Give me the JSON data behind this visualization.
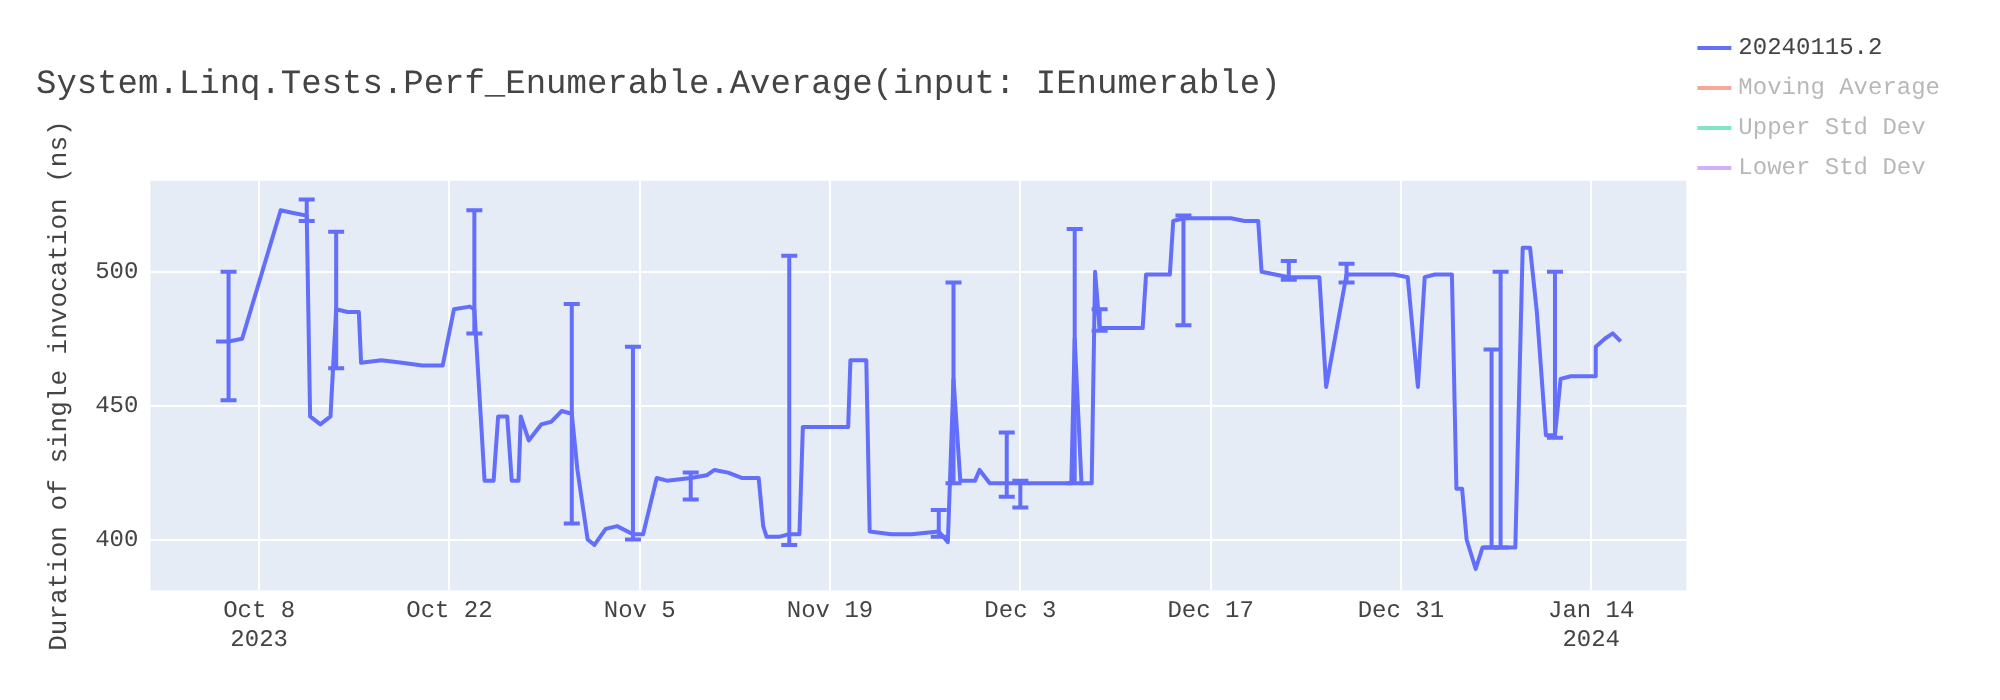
{
  "chart_data": {
    "type": "line",
    "title": "System.Linq.Tests.Perf_Enumerable.Average(input: IEnumerable)",
    "ylabel": "Duration of single invocation (ns)",
    "xlim": [
      "2023-09-30",
      "2024-01-21"
    ],
    "xticks": [
      {
        "value": "2023-10-08",
        "label": "Oct 8\n2023"
      },
      {
        "value": "2023-10-22",
        "label": "Oct 22"
      },
      {
        "value": "2023-11-05",
        "label": "Nov 5"
      },
      {
        "value": "2023-11-19",
        "label": "Nov 19"
      },
      {
        "value": "2023-12-03",
        "label": "Dec 3"
      },
      {
        "value": "2023-12-17",
        "label": "Dec 17"
      },
      {
        "value": "2023-12-31",
        "label": "Dec 31"
      },
      {
        "value": "2024-01-14",
        "label": "Jan 14\n2024"
      }
    ],
    "ylim": [
      381,
      534
    ],
    "yticks": [
      400,
      450,
      500
    ],
    "grid": true,
    "legend": "right",
    "marker": "none",
    "line_style": "solid",
    "series": [
      {
        "name": "20240115.2",
        "color": "#636efa",
        "x": [
          "2023-10-04T20:00",
          "2023-10-05T18:00",
          "2023-10-06T18:00",
          "2023-10-09T14:00",
          "2023-10-10T12:00",
          "2023-10-11T12:00",
          "2023-10-11T18:00",
          "2023-10-12T12:00",
          "2023-10-13T06:00",
          "2023-10-13T16:00",
          "2023-10-14T12:00",
          "2023-10-15T08:00",
          "2023-10-15T12:00",
          "2023-10-17T00:00",
          "2023-10-18T12:00",
          "2023-10-20T00:00",
          "2023-10-21T12:00",
          "2023-10-22T08:00",
          "2023-10-23T12:00",
          "2023-10-23T20:00",
          "2023-10-24T14:00",
          "2023-10-25T06:00",
          "2023-10-25T14:00",
          "2023-10-26T06:00",
          "2023-10-26T14:00",
          "2023-10-27T02:00",
          "2023-10-27T06:00",
          "2023-10-27T20:00",
          "2023-10-28T18:00",
          "2023-10-29T12:00",
          "2023-10-30T06:00",
          "2023-10-31T00:00",
          "2023-10-31T10:00",
          "2023-11-01T04:00",
          "2023-11-01T16:00",
          "2023-11-02T12:00",
          "2023-11-03T08:00",
          "2023-11-04T12:00",
          "2023-11-05T06:00",
          "2023-11-06T06:00",
          "2023-11-07T00:00",
          "2023-11-08T18:00",
          "2023-11-09T22:00",
          "2023-11-10T12:00",
          "2023-11-11T12:00",
          "2023-11-12T12:00",
          "2023-11-13T18:00",
          "2023-11-14T02:00",
          "2023-11-14T08:00",
          "2023-11-15T06:00",
          "2023-11-16T00:00",
          "2023-11-16T18:00",
          "2023-11-17T00:00",
          "2023-11-18T12:00",
          "2023-11-20T08:00",
          "2023-11-20T12:00",
          "2023-11-21T16:00",
          "2023-11-21T22:00",
          "2023-11-23T12:00",
          "2023-11-25T00:00",
          "2023-11-27T00:00",
          "2023-11-27T16:00",
          "2023-11-28T02:00",
          "2023-11-28T14:00",
          "2023-11-29T16:00",
          "2023-11-30T00:00",
          "2023-11-30T18:00",
          "2023-12-02T00:00",
          "2023-12-03T00:00",
          "2023-12-04T12:00",
          "2023-12-06T02:00",
          "2023-12-06T18:00",
          "2023-12-07T00:00",
          "2023-12-07T12:00",
          "2023-12-08T06:00",
          "2023-12-08T12:00",
          "2023-12-08T20:00",
          "2023-12-09T12:00",
          "2023-12-10T12:00",
          "2023-12-12T00:00",
          "2023-12-12T06:00",
          "2023-12-13T12:00",
          "2023-12-14T00:00",
          "2023-12-14T06:00",
          "2023-12-15T00:00",
          "2023-12-16T00:00",
          "2023-12-17T00:00",
          "2023-12-18T12:00",
          "2023-12-19T12:00",
          "2023-12-20T12:00",
          "2023-12-20T18:00",
          "2023-12-21T18:00",
          "2023-12-22T18:00",
          "2023-12-24T00:00",
          "2023-12-25T00:00",
          "2023-12-25T12:00",
          "2023-12-27T00:00",
          "2023-12-28T12:00",
          "2023-12-30T12:00",
          "2023-12-31T12:00",
          "2024-01-01T06:00",
          "2024-01-01T18:00",
          "2024-01-02T12:00",
          "2024-01-03T18:00",
          "2024-01-04T02:00",
          "2024-01-04T12:00",
          "2024-01-04T20:00",
          "2024-01-05T12:00",
          "2024-01-06T00:00",
          "2024-01-06T16:00",
          "2024-01-07T08:00",
          "2024-01-08T10:00",
          "2024-01-08T23:00",
          "2024-01-09T12:00",
          "2024-01-10T00:00",
          "2024-01-10T16:00",
          "2024-01-11T08:00",
          "2024-01-11T18:00",
          "2024-01-12T12:00",
          "2024-01-13T12:00",
          "2024-01-14T06:00",
          "2024-01-14T08:00",
          "2024-01-15T00:00",
          "2024-01-15T14:00",
          "2024-01-16T04:00"
        ],
        "values": [
          474,
          474,
          475,
          523,
          522,
          521,
          446,
          443,
          446,
          486,
          485,
          485,
          466,
          467,
          466,
          465,
          465,
          486,
          487,
          486,
          422,
          422,
          446,
          446,
          422,
          422,
          446,
          437,
          443,
          444,
          448,
          447,
          426,
          400,
          398,
          404,
          405,
          402,
          402,
          423,
          422,
          423,
          424,
          426,
          425,
          423,
          423,
          405,
          401,
          401,
          402,
          402,
          442,
          442,
          442,
          467,
          467,
          403,
          402,
          402,
          403,
          399,
          460,
          422,
          422,
          426,
          421,
          421,
          421,
          421,
          421,
          421,
          475,
          421,
          421,
          500,
          479,
          479,
          479,
          479,
          499,
          499,
          499,
          519,
          520,
          520,
          520,
          520,
          519,
          519,
          500,
          499,
          498,
          498,
          498,
          457,
          499,
          499,
          499,
          498,
          457,
          498,
          499,
          499,
          419,
          419,
          400,
          389,
          397,
          397,
          397,
          397,
          509,
          509,
          485,
          439,
          439,
          460,
          461,
          461,
          461,
          472,
          475,
          477,
          474
        ],
        "errors": [
          null,
          [
            452,
            500
          ],
          null,
          null,
          null,
          [
            519,
            527
          ],
          null,
          null,
          null,
          [
            464,
            515
          ],
          null,
          null,
          null,
          null,
          null,
          null,
          null,
          null,
          null,
          [
            477,
            523
          ],
          null,
          null,
          null,
          null,
          null,
          null,
          null,
          null,
          null,
          null,
          null,
          [
            406,
            488
          ],
          null,
          null,
          null,
          null,
          null,
          [
            400,
            472
          ],
          null,
          null,
          null,
          [
            415,
            425
          ],
          null,
          null,
          null,
          null,
          null,
          null,
          null,
          null,
          [
            398,
            506
          ],
          null,
          null,
          null,
          null,
          null,
          null,
          null,
          null,
          null,
          [
            401,
            411
          ],
          null,
          [
            421,
            496
          ],
          null,
          null,
          null,
          null,
          [
            416,
            440
          ],
          [
            412,
            422
          ],
          null,
          null,
          null,
          [
            421,
            516
          ],
          null,
          null,
          null,
          [
            478,
            486
          ],
          null,
          null,
          null,
          null,
          null,
          null,
          null,
          [
            480,
            521
          ],
          null,
          null,
          null,
          null,
          null,
          null,
          null,
          [
            497,
            504
          ],
          null,
          null,
          null,
          [
            496,
            503
          ],
          null,
          null,
          null,
          null,
          null,
          null,
          null,
          null,
          null,
          null,
          null,
          null,
          [
            397,
            471
          ],
          [
            397,
            500
          ],
          null,
          null,
          null,
          null,
          null,
          [
            438,
            500
          ],
          null,
          null,
          null,
          null,
          null,
          null,
          null,
          null
        ]
      },
      {
        "name": "Moving Average",
        "color": "#f5a898"
      },
      {
        "name": "Upper Std Dev",
        "color": "#80e5c9"
      },
      {
        "name": "Lower Std Dev",
        "color": "#d4b0fc"
      }
    ]
  }
}
